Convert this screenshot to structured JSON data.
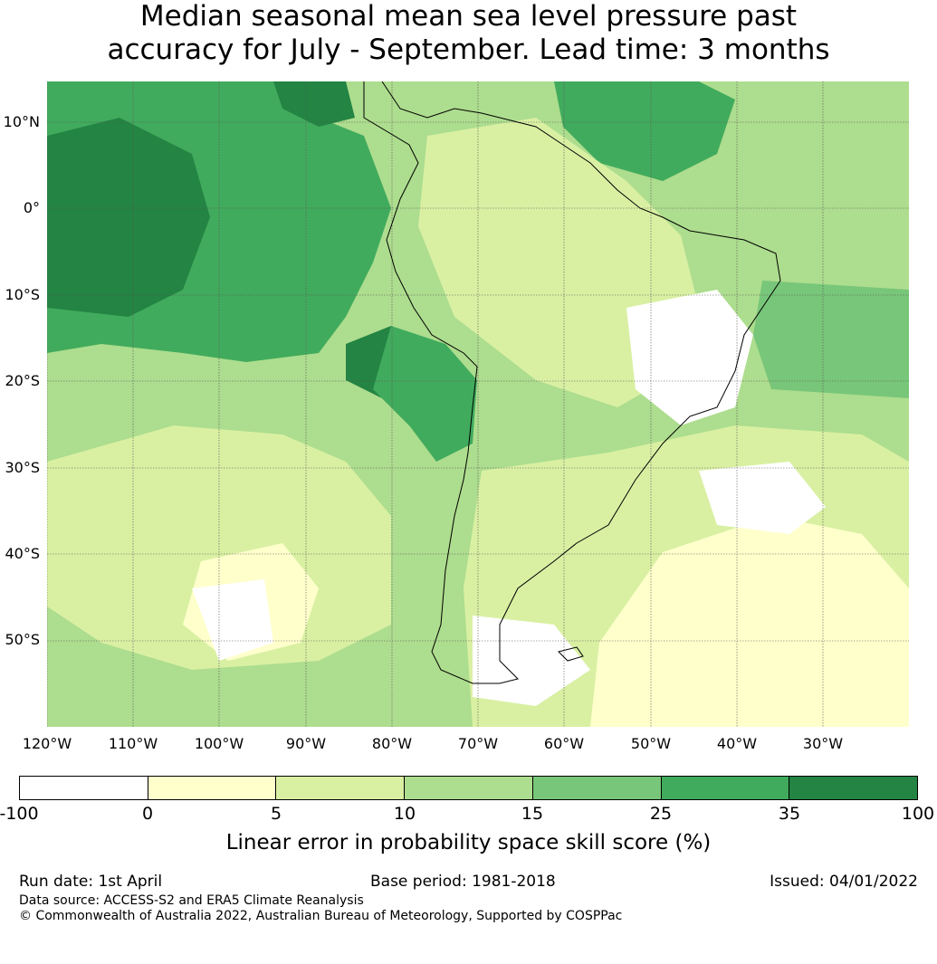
{
  "title": {
    "line1": "Median seasonal mean sea level pressure past",
    "line2": "accuracy for July - September. Lead time: 3 months"
  },
  "map": {
    "lat_labels": [
      "10°N",
      "0°",
      "10°S",
      "20°S",
      "30°S",
      "40°S",
      "50°S"
    ],
    "lon_labels": [
      "120°W",
      "110°W",
      "100°W",
      "90°W",
      "80°W",
      "70°W",
      "60°W",
      "50°W",
      "40°W",
      "30°W"
    ],
    "region": "South America"
  },
  "colorbar": {
    "ticks": [
      "-100",
      "0",
      "5",
      "10",
      "15",
      "25",
      "35",
      "100"
    ],
    "colors": [
      "#ffffff",
      "#ffffcc",
      "#d9f0a3",
      "#addd8e",
      "#78c679",
      "#41ab5d",
      "#238443"
    ],
    "label": "Linear error in probability space skill score (%)"
  },
  "footer": {
    "run_date": "Run date: 1st April",
    "base_period": "Base period: 1981-2018",
    "issued": "Issued: 04/01/2022",
    "data_source": "Data source: ACCESS-S2 and ERA5 Climate Reanalysis",
    "copyright": "© Commonwealth of Australia 2022, Australian Bureau of Meteorology, Supported by COSPPac"
  }
}
